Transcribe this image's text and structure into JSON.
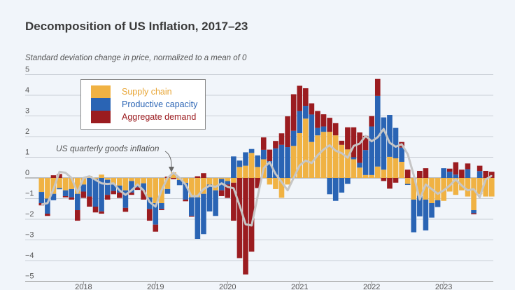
{
  "title": "Decomposition of US Inflation, 2017–23",
  "subtitle": "Standard deviation change in price, normalized to a mean of 0",
  "chart_data": {
    "type": "bar",
    "stacked": true,
    "title": "Decomposition of US Inflation, 2017–23",
    "ylabel": "Standard deviation change in price, normalized to a mean of 0",
    "ylim": [
      -5,
      5
    ],
    "yticks": [
      "5",
      "4",
      "3",
      "2",
      "1",
      "0",
      "−1",
      "−2",
      "−3",
      "−4",
      "−5"
    ],
    "xticks": [
      "2018",
      "2019",
      "2020",
      "2021",
      "2022",
      "2023"
    ],
    "x_start": "2017-06",
    "x_end": "2023-09",
    "frequency": "monthly",
    "grid": true,
    "legend_position": "top-left",
    "annotation": "US quarterly goods inflation",
    "colors": {
      "supply": "#f0b243",
      "capacity": "#2a64b4",
      "demand": "#9b1c20",
      "line": "#c6c6c6"
    },
    "series": [
      {
        "name": "Supply chain",
        "values": [
          -0.68,
          -1.0,
          -0.77,
          -0.49,
          -0.6,
          -0.54,
          -0.77,
          -0.32,
          0.1,
          -0.05,
          0.16,
          -0.09,
          -0.32,
          -0.37,
          -0.6,
          -0.15,
          -0.37,
          -0.26,
          -0.94,
          -1.22,
          -1.22,
          -0.54,
          0.27,
          -0.1,
          -0.24,
          -0.94,
          -0.94,
          -0.77,
          -0.32,
          -0.6,
          -0.05,
          -0.15,
          -0.23,
          0.53,
          0.59,
          1.21,
          0.53,
          0.9,
          -0.32,
          -0.54,
          -0.96,
          -0.32,
          1.55,
          2.17,
          2.87,
          1.74,
          2.06,
          2.23,
          2.23,
          2.06,
          1.6,
          1.38,
          0.9,
          0.5,
          0.14,
          0.14,
          0.55,
          0.4,
          1.02,
          0.95,
          0.78,
          -0.29,
          -1.05,
          -0.86,
          -1.05,
          -1.22,
          -1.08,
          -1.11,
          -0.66,
          -0.82,
          -0.6,
          -0.9,
          -1.56,
          -0.79,
          -0.9,
          -0.9
        ]
      },
      {
        "name": "Productive capacity",
        "values": [
          -0.54,
          -0.73,
          -0.31,
          -0.06,
          -0.28,
          -0.4,
          -0.79,
          -0.34,
          -0.9,
          -1.34,
          -1.62,
          -0.73,
          -0.31,
          -0.34,
          -0.85,
          -0.56,
          -0.08,
          -0.34,
          -0.56,
          -1.04,
          -0.28,
          -0.23,
          0,
          -0.25,
          -0.81,
          -0.9,
          -2.01,
          -1.95,
          -1.3,
          -1.24,
          -0.55,
          -0.17,
          1.04,
          0.31,
          0.65,
          0.19,
          0.56,
          0.46,
          0.81,
          1.43,
          1.6,
          1.49,
          0.73,
          1.07,
          0.62,
          1.33,
          0.36,
          0.26,
          -0.79,
          -1.11,
          -0.71,
          -0.29,
          0.1,
          0.23,
          1.21,
          2.35,
          3.42,
          2.53,
          2.03,
          1.47,
          0.69,
          -0.05,
          -1.58,
          -1.0,
          -1.49,
          -0.7,
          -0.33,
          0.47,
          0.3,
          0.16,
          0,
          0.42,
          -0.15,
          0.33,
          0,
          0
        ]
      },
      {
        "name": "Aggregate demand",
        "values": [
          -0.11,
          -0.11,
          0.13,
          0.19,
          -0.06,
          -0.11,
          -0.51,
          -0.31,
          -0.49,
          -0.28,
          -0.11,
          -0.23,
          -0.16,
          -0.26,
          -0.19,
          -0.11,
          -0.13,
          -0.45,
          -0.57,
          -0.34,
          -0.06,
          0.06,
          -0.06,
          0,
          -0.08,
          -0.04,
          0.08,
          0.23,
          0,
          0,
          -0.28,
          -0.65,
          -1.84,
          -3.88,
          -4.67,
          -3.57,
          -0.49,
          0.6,
          0.56,
          0.36,
          0.56,
          1.49,
          1.77,
          1.22,
          0.85,
          0.54,
          0.82,
          0.59,
          0.68,
          0.59,
          0.2,
          1.07,
          1.45,
          1.47,
          0.69,
          0.5,
          0.82,
          -0.15,
          -0.52,
          -0.23,
          0.27,
          0.4,
          0,
          0.34,
          0.47,
          0,
          0,
          0,
          0.15,
          0.6,
          0.4,
          0.28,
          -0.05,
          0.26,
          0.34,
          0.3
        ]
      },
      {
        "name": "US quarterly goods inflation",
        "type": "line",
        "values": [
          -1.28,
          -1.22,
          -0.54,
          0.3,
          0.25,
          0,
          -0.71,
          0,
          0.08,
          -0.09,
          -0.26,
          -0.29,
          -0.26,
          -0.6,
          -0.82,
          -0.6,
          -0.32,
          -0.6,
          -1.16,
          -1.39,
          -0.6,
          0,
          0.25,
          0,
          -0.32,
          -0.88,
          -0.88,
          -0.54,
          -0.37,
          -0.43,
          -0.26,
          -0.43,
          -0.5,
          -1.33,
          -2.24,
          -2.3,
          -0.9,
          0.47,
          0.76,
          0.19,
          -0.2,
          -0.6,
          0,
          0.6,
          0.84,
          0.72,
          1.1,
          1.38,
          1.58,
          1.32,
          1.2,
          0.98,
          1.55,
          1.66,
          2.03,
          1.77,
          1.97,
          2.37,
          1.7,
          1.51,
          1.63,
          1.15,
          0.14,
          -1.05,
          -0.32,
          -0.54,
          -0.77,
          -0.6,
          -0.37,
          -0.07,
          -0.37,
          -0.6,
          -0.54,
          -0.94,
          -0.07,
          0.11
        ]
      }
    ]
  }
}
